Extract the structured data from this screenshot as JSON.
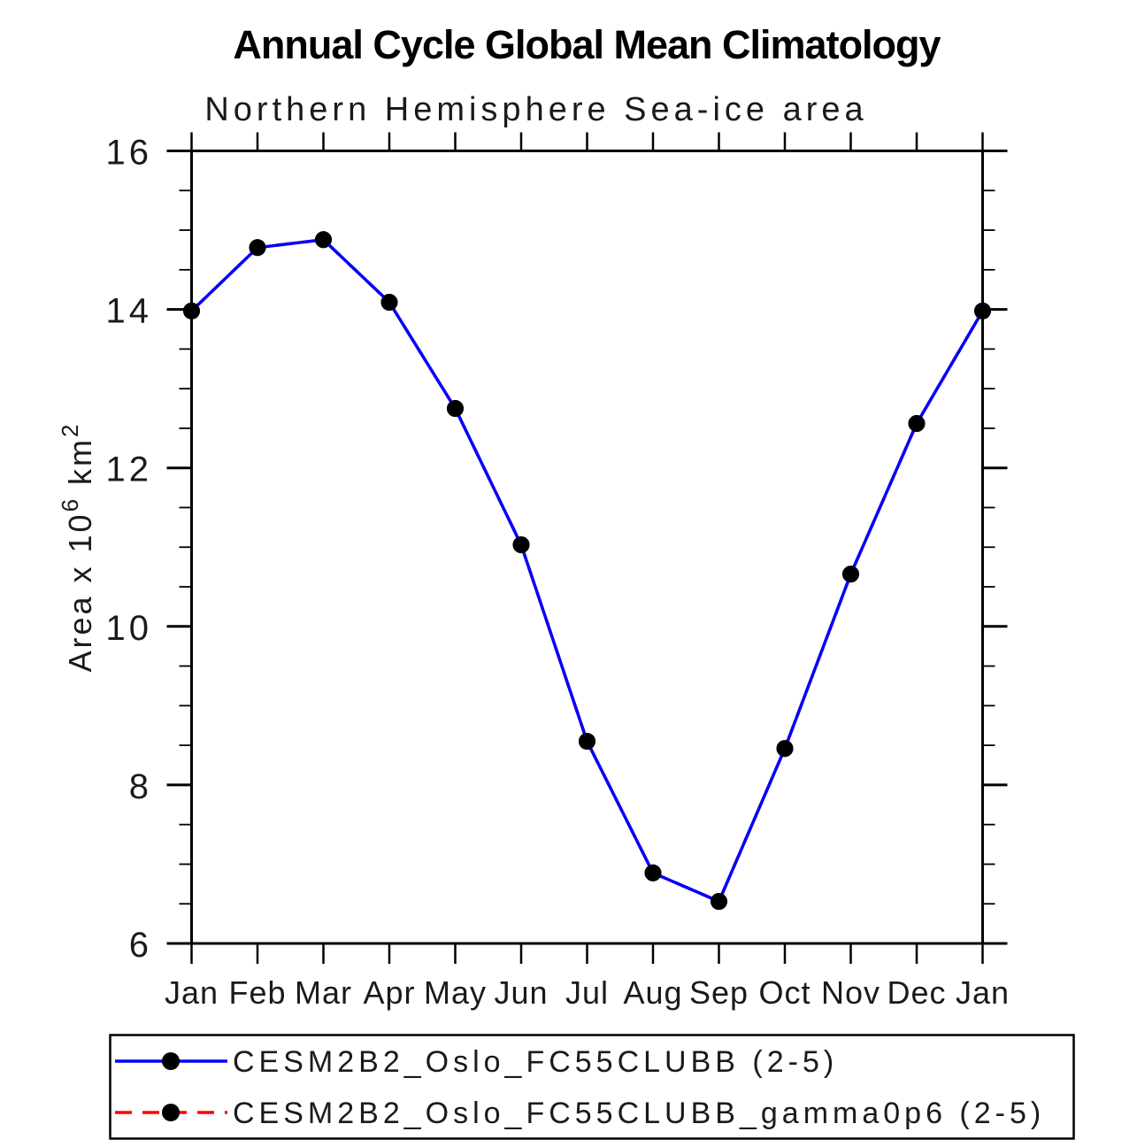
{
  "title": "Annual Cycle Global Mean Climatology",
  "subtitle": "Northern Hemisphere Sea-ice area",
  "y_axis": {
    "title_prefix": "Area x 10",
    "title_superscript": "6",
    "title_mid": " km",
    "title_superscript2": "2",
    "tick_labels": [
      "6",
      "8",
      "10",
      "12",
      "14",
      "16"
    ]
  },
  "x_axis": {
    "tick_labels": [
      "Jan",
      "Feb",
      "Mar",
      "Apr",
      "May",
      "Jun",
      "Jul",
      "Aug",
      "Sep",
      "Oct",
      "Nov",
      "Dec",
      "Jan"
    ]
  },
  "legend": {
    "items": [
      {
        "label": "CESM2B2_Oslo_FC55CLUBB (2-5)",
        "color": "#0000ff",
        "line_style": "solid",
        "marker": "filled-circle",
        "marker_color": "#000000"
      },
      {
        "label": "CESM2B2_Oslo_FC55CLUBB_gamma0p6 (2-5)",
        "color": "#ff0000",
        "line_style": "dashed",
        "marker": "filled-circle",
        "marker_color": "#000000"
      }
    ]
  },
  "chart_data": {
    "type": "line",
    "title": "Annual Cycle Global Mean Climatology",
    "subtitle": "Northern Hemisphere Sea-ice area",
    "xlabel": "",
    "ylabel": "Area x 10^6 km^2",
    "x": [
      "Jan",
      "Feb",
      "Mar",
      "Apr",
      "May",
      "Jun",
      "Jul",
      "Aug",
      "Sep",
      "Oct",
      "Nov",
      "Dec",
      "Jan"
    ],
    "series": [
      {
        "name": "CESM2B2_Oslo_FC55CLUBB (2-5)",
        "color": "#0000ff",
        "style": "solid",
        "marker": "circle",
        "marker_color": "#000000",
        "values": [
          13.98,
          14.78,
          14.88,
          14.09,
          12.75,
          11.03,
          8.55,
          6.89,
          6.53,
          8.46,
          10.66,
          12.56,
          13.98
        ]
      },
      {
        "name": "CESM2B2_Oslo_FC55CLUBB_gamma0p6 (2-5)",
        "color": "#ff0000",
        "style": "dashed",
        "marker": "circle",
        "marker_color": "#000000",
        "values": [
          13.98,
          14.78,
          14.88,
          14.09,
          12.75,
          11.03,
          8.55,
          6.89,
          6.53,
          8.46,
          10.66,
          12.56,
          13.98
        ],
        "note": "dashed curve coincides with solid curve and is hidden beneath it in the plot"
      }
    ],
    "ylim": [
      6,
      16
    ],
    "y_major_ticks": [
      6,
      8,
      10,
      12,
      14,
      16
    ],
    "y_minor_tick_step": 0.5,
    "grid": false,
    "legend_position": "bottom-box"
  }
}
